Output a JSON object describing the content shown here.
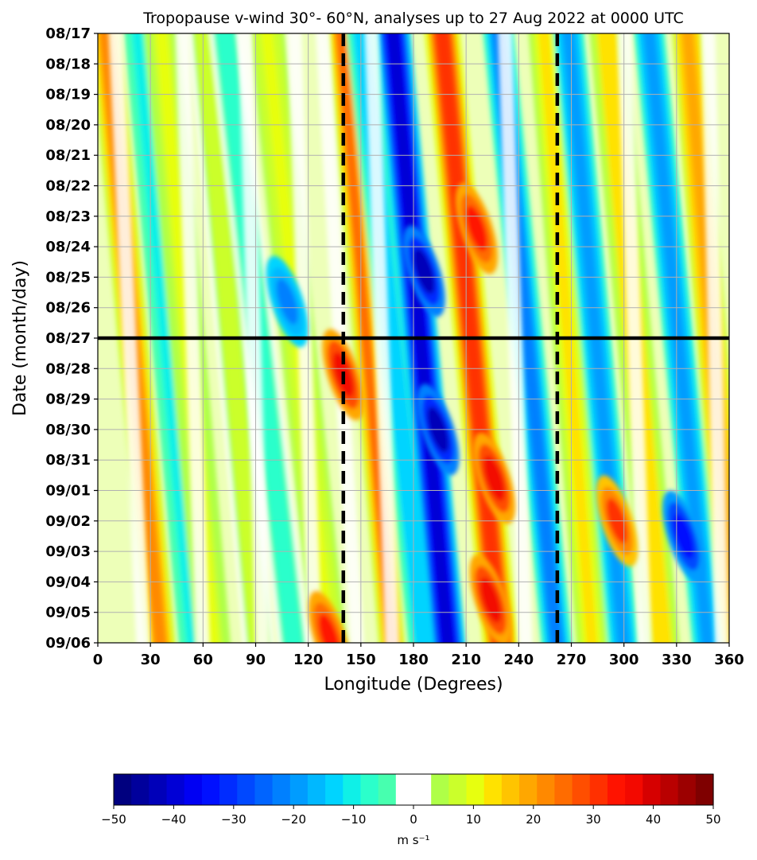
{
  "chart_data": {
    "type": "heatmap",
    "title": "Tropopause v-wind 30°- 60°N, analyses up to 27 Aug 2022 at 0000 UTC",
    "xlabel": "Longitude (Degrees)",
    "ylabel": "Date (month/day)",
    "xlim": [
      0,
      360
    ],
    "x_ticks": [
      "0",
      "30",
      "60",
      "90",
      "120",
      "150",
      "180",
      "210",
      "240",
      "270",
      "300",
      "330",
      "360"
    ],
    "y_ticks": [
      "08/17",
      "08/18",
      "08/19",
      "08/20",
      "08/21",
      "08/22",
      "08/23",
      "08/24",
      "08/25",
      "08/26",
      "08/27",
      "08/28",
      "08/29",
      "08/30",
      "08/31",
      "09/01",
      "09/02",
      "09/03",
      "09/04",
      "09/05",
      "09/06"
    ],
    "grid": true,
    "analysis_date": "08/27",
    "reference_longitudes": [
      140,
      262
    ],
    "colorbar": {
      "label": "m s⁻¹",
      "range": [
        -50,
        50
      ],
      "ticks": [
        "−50",
        "−40",
        "−30",
        "−20",
        "−10",
        "0",
        "10",
        "20",
        "30",
        "40",
        "50"
      ],
      "colors": [
        "#00007f",
        "#00009c",
        "#0000b9",
        "#0000d6",
        "#0000f3",
        "#0010ff",
        "#002cff",
        "#0048ff",
        "#0064ff",
        "#0080ff",
        "#009cff",
        "#00b8ff",
        "#00d4ff",
        "#0ff0e7",
        "#2bffcb",
        "#47ffaf",
        "#ffffff",
        "#ffffff",
        "#afff47",
        "#cbff2b",
        "#e7ff0f",
        "#ffe200",
        "#ffc400",
        "#ffa700",
        "#ff8900",
        "#ff6c00",
        "#ff4e00",
        "#ff3000",
        "#ff1300",
        "#f30900",
        "#d60000",
        "#b90000",
        "#9c0000",
        "#7f0000"
      ]
    },
    "bands": [
      {
        "lon0": 4,
        "lon1": 36,
        "v": 22,
        "width": 7
      },
      {
        "lon0": 22,
        "lon1": 54,
        "v": -9,
        "width": 6
      },
      {
        "lon0": 36,
        "lon1": 66,
        "v": 9,
        "width": 8
      },
      {
        "lon0": 60,
        "lon1": 92,
        "v": 7,
        "width": 7
      },
      {
        "lon0": 72,
        "lon1": 112,
        "v": -8,
        "width": 7
      },
      {
        "lon0": 96,
        "lon1": 132,
        "v": 10,
        "width": 8
      },
      {
        "lon0": 138,
        "lon1": 168,
        "v": 24,
        "width": 6
      },
      {
        "lon0": 150,
        "lon1": 186,
        "v": -14,
        "width": 7
      },
      {
        "lon0": 168,
        "lon1": 200,
        "v": -40,
        "width": 8
      },
      {
        "lon0": 196,
        "lon1": 230,
        "v": 32,
        "width": 8
      },
      {
        "lon0": 228,
        "lon1": 262,
        "v": -22,
        "width": 7
      },
      {
        "lon0": 254,
        "lon1": 282,
        "v": 12,
        "width": 7
      },
      {
        "lon0": 268,
        "lon1": 300,
        "v": -20,
        "width": 7
      },
      {
        "lon0": 290,
        "lon1": 322,
        "v": 14,
        "width": 8
      },
      {
        "lon0": 314,
        "lon1": 348,
        "v": -20,
        "width": 7
      },
      {
        "lon0": 336,
        "lon1": 364,
        "v": 20,
        "width": 7
      }
    ],
    "blobs": [
      {
        "lon": 140,
        "day": 11.2,
        "v": 36
      },
      {
        "lon": 186,
        "day": 7.8,
        "v": -42
      },
      {
        "lon": 216,
        "day": 6.4,
        "v": 34
      },
      {
        "lon": 194,
        "day": 13.0,
        "v": -42
      },
      {
        "lon": 226,
        "day": 14.6,
        "v": 36
      },
      {
        "lon": 224,
        "day": 18.6,
        "v": 36
      },
      {
        "lon": 108,
        "day": 8.8,
        "v": -22
      },
      {
        "lon": 296,
        "day": 16.0,
        "v": 30
      },
      {
        "lon": 334,
        "day": 16.5,
        "v": -35
      },
      {
        "lon": 132,
        "day": 19.8,
        "v": 34
      }
    ]
  }
}
